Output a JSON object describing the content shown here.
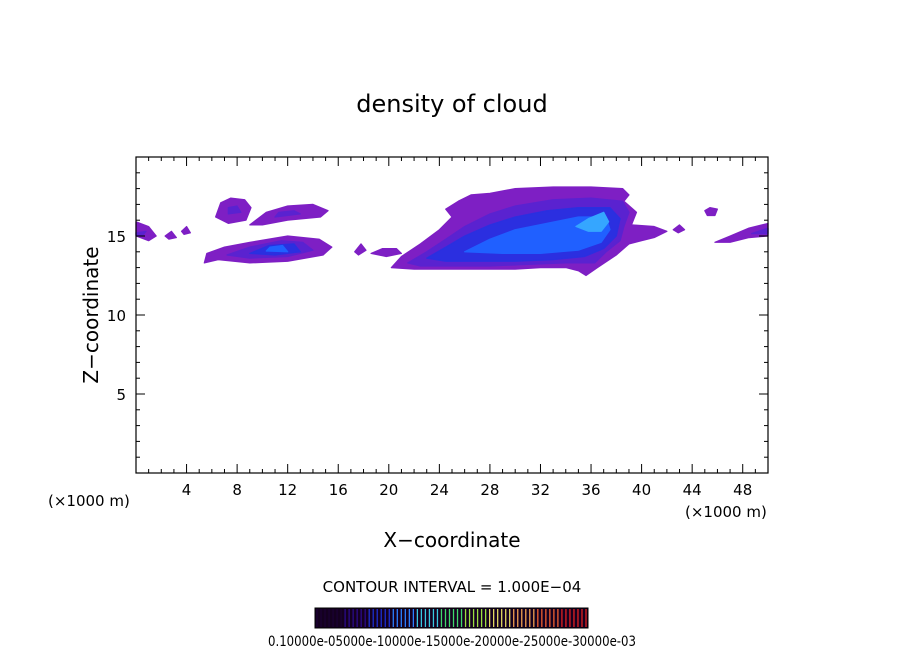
{
  "chart_data": {
    "type": "heatmap",
    "title": "density of cloud",
    "xlabel": "X−coordinate",
    "ylabel": "Z−coordinate",
    "x_unit_left": "(×1000 m)",
    "x_unit_right": "(×1000 m)",
    "xlim": [
      0,
      50
    ],
    "ylim": [
      0,
      20
    ],
    "x_ticks": [
      4,
      8,
      12,
      16,
      20,
      24,
      28,
      32,
      36,
      40,
      44,
      48
    ],
    "y_ticks": [
      5,
      10,
      15
    ],
    "x_tick_labels": [
      "4",
      "8",
      "12",
      "16",
      "20",
      "24",
      "28",
      "32",
      "36",
      "40",
      "44",
      "48"
    ],
    "y_tick_labels": [
      "5",
      "10",
      "15"
    ],
    "contour_interval_text": "CONTOUR INTERVAL = 1.000E−04",
    "colorbar_labels_text": "0.10000e-05000e-10000e-15000e-20000e-25000e-30000e-03",
    "colorbar_colors": [
      "#1a0033",
      "#2a0a8a",
      "#1c2fd0",
      "#2a7fff",
      "#38c8e0",
      "#3fd86a",
      "#9adf40",
      "#e0d860",
      "#f0a050",
      "#f06030",
      "#e02020"
    ],
    "colors": {
      "outer": "#7e1fc4",
      "mid": "#5a22d0",
      "inner": "#2b2fe0",
      "core": "#2060ff",
      "peak": "#35a6ff"
    },
    "cloud_regions": [
      {
        "name": "left-low-band",
        "level": 1,
        "pts": [
          [
            5.4,
            13.3
          ],
          [
            6.5,
            13.5
          ],
          [
            9,
            13.3
          ],
          [
            12,
            13.4
          ],
          [
            14.8,
            13.8
          ],
          [
            15.5,
            14.3
          ],
          [
            14.5,
            14.8
          ],
          [
            12,
            15.0
          ],
          [
            9,
            14.6
          ],
          [
            7,
            14.3
          ],
          [
            5.6,
            13.9
          ]
        ]
      },
      {
        "name": "left-low-band",
        "level": 2,
        "pts": [
          [
            7.2,
            13.8
          ],
          [
            9,
            13.6
          ],
          [
            12,
            13.7
          ],
          [
            14,
            14.1
          ],
          [
            13.2,
            14.6
          ],
          [
            11.5,
            14.7
          ],
          [
            9,
            14.3
          ]
        ]
      },
      {
        "name": "left-low-band",
        "level": 3,
        "pts": [
          [
            9,
            13.9
          ],
          [
            11,
            13.8
          ],
          [
            13,
            14.0
          ],
          [
            12.5,
            14.5
          ],
          [
            10.5,
            14.4
          ]
        ]
      },
      {
        "name": "left-low-band",
        "level": 4,
        "pts": [
          [
            10.3,
            14.05
          ],
          [
            12,
            14.0
          ],
          [
            11.6,
            14.4
          ],
          [
            10.6,
            14.3
          ]
        ]
      },
      {
        "name": "upper-left-puff",
        "level": 1,
        "pts": [
          [
            6.3,
            16.2
          ],
          [
            6.7,
            17.1
          ],
          [
            7.5,
            17.4
          ],
          [
            8.6,
            17.3
          ],
          [
            9.1,
            16.8
          ],
          [
            8.7,
            16.0
          ],
          [
            7.3,
            15.8
          ]
        ]
      },
      {
        "name": "upper-left-puff",
        "level": 2,
        "pts": [
          [
            7.3,
            16.4
          ],
          [
            8.3,
            16.5
          ],
          [
            8.0,
            16.9
          ],
          [
            7.3,
            16.8
          ]
        ]
      },
      {
        "name": "upper-mid-band",
        "level": 1,
        "pts": [
          [
            9.0,
            15.7
          ],
          [
            10.3,
            16.5
          ],
          [
            12,
            16.9
          ],
          [
            14,
            17.0
          ],
          [
            15.2,
            16.6
          ],
          [
            14.6,
            16.2
          ],
          [
            12,
            16.0
          ],
          [
            10,
            15.7
          ]
        ]
      },
      {
        "name": "upper-mid-band",
        "level": 2,
        "pts": [
          [
            11,
            16.2
          ],
          [
            13,
            16.4
          ],
          [
            12.5,
            16.6
          ],
          [
            11.3,
            16.5
          ]
        ]
      },
      {
        "name": "left-edge",
        "level": 1,
        "pts": [
          [
            0,
            15.9
          ],
          [
            1.0,
            15.6
          ],
          [
            1.6,
            15.0
          ],
          [
            1.0,
            14.7
          ],
          [
            0,
            15.0
          ]
        ]
      },
      {
        "name": "left-edge",
        "level": 2,
        "pts": [
          [
            0,
            15.2
          ],
          [
            0.8,
            15.3
          ],
          [
            0.5,
            15.0
          ],
          [
            0,
            15.05
          ]
        ]
      },
      {
        "name": "speck",
        "level": 1,
        "pts": [
          [
            2.3,
            15.0
          ],
          [
            2.8,
            15.3
          ],
          [
            3.2,
            14.9
          ],
          [
            2.6,
            14.8
          ]
        ]
      },
      {
        "name": "speck",
        "level": 1,
        "pts": [
          [
            3.6,
            15.3
          ],
          [
            4.0,
            15.6
          ],
          [
            4.3,
            15.2
          ],
          [
            3.8,
            15.1
          ]
        ]
      },
      {
        "name": "speck",
        "level": 1,
        "pts": [
          [
            17.3,
            14.0
          ],
          [
            17.8,
            14.5
          ],
          [
            18.2,
            14.1
          ],
          [
            17.6,
            13.8
          ]
        ]
      },
      {
        "name": "speck",
        "level": 1,
        "pts": [
          [
            18.6,
            13.9
          ],
          [
            19.5,
            14.2
          ],
          [
            20.6,
            14.2
          ],
          [
            21.0,
            13.9
          ],
          [
            19.8,
            13.7
          ]
        ]
      },
      {
        "name": "speck",
        "level": 1,
        "pts": [
          [
            45.0,
            16.6
          ],
          [
            45.4,
            16.8
          ],
          [
            46.0,
            16.7
          ],
          [
            45.8,
            16.3
          ],
          [
            45.2,
            16.3
          ]
        ]
      },
      {
        "name": "speck",
        "level": 1,
        "pts": [
          [
            42.5,
            15.4
          ],
          [
            43.0,
            15.7
          ],
          [
            43.4,
            15.4
          ],
          [
            42.9,
            15.2
          ]
        ]
      },
      {
        "name": "right-edge",
        "level": 1,
        "pts": [
          [
            45.8,
            14.6
          ],
          [
            47.0,
            15.0
          ],
          [
            48.5,
            15.5
          ],
          [
            50,
            15.8
          ],
          [
            50,
            15.0
          ],
          [
            48.5,
            14.9
          ],
          [
            47.0,
            14.6
          ]
        ]
      },
      {
        "name": "right-edge",
        "level": 2,
        "pts": [
          [
            48.7,
            15.15
          ],
          [
            50,
            15.5
          ],
          [
            50,
            15.15
          ]
        ]
      },
      {
        "name": "main-cloud",
        "level": 1,
        "pts": [
          [
            20.2,
            13.0
          ],
          [
            21,
            13.7
          ],
          [
            22.5,
            14.5
          ],
          [
            24,
            15.4
          ],
          [
            25,
            16.2
          ],
          [
            24.5,
            16.7
          ],
          [
            25.5,
            17.2
          ],
          [
            26.5,
            17.6
          ],
          [
            28,
            17.7
          ],
          [
            30,
            18.0
          ],
          [
            33,
            18.1
          ],
          [
            36,
            18.1
          ],
          [
            38.5,
            18.0
          ],
          [
            39,
            17.6
          ],
          [
            38.6,
            17.2
          ],
          [
            39.6,
            16.5
          ],
          [
            39.2,
            15.7
          ],
          [
            41,
            15.6
          ],
          [
            42,
            15.3
          ],
          [
            41,
            14.9
          ],
          [
            40,
            14.7
          ],
          [
            39,
            14.5
          ],
          [
            38,
            13.8
          ],
          [
            36.5,
            13.0
          ],
          [
            35.6,
            12.5
          ],
          [
            35,
            12.8
          ],
          [
            34,
            13.0
          ],
          [
            32,
            13.0
          ],
          [
            30,
            12.9
          ],
          [
            27,
            12.9
          ],
          [
            24,
            12.9
          ],
          [
            22,
            12.9
          ]
        ]
      },
      {
        "name": "main-cloud",
        "level": 2,
        "pts": [
          [
            21.5,
            13.3
          ],
          [
            23,
            14.0
          ],
          [
            24.5,
            14.8
          ],
          [
            26,
            15.6
          ],
          [
            28,
            16.4
          ],
          [
            30,
            16.9
          ],
          [
            33,
            17.3
          ],
          [
            36,
            17.4
          ],
          [
            38.5,
            17.2
          ],
          [
            39,
            16.5
          ],
          [
            38.6,
            15.6
          ],
          [
            38.3,
            14.7
          ],
          [
            37.2,
            14.0
          ],
          [
            36.3,
            13.3
          ],
          [
            34,
            13.3
          ],
          [
            31,
            13.2
          ],
          [
            28,
            13.1
          ],
          [
            25,
            13.1
          ],
          [
            22.5,
            13.1
          ]
        ]
      },
      {
        "name": "main-cloud",
        "level": 3,
        "pts": [
          [
            23,
            13.6
          ],
          [
            24.5,
            14.3
          ],
          [
            26,
            15.0
          ],
          [
            28,
            15.7
          ],
          [
            30,
            16.2
          ],
          [
            32.5,
            16.6
          ],
          [
            35,
            16.8
          ],
          [
            37.5,
            16.8
          ],
          [
            38.3,
            16.1
          ],
          [
            38,
            15.0
          ],
          [
            37,
            14.2
          ],
          [
            35.5,
            13.7
          ],
          [
            33,
            13.5
          ],
          [
            30,
            13.4
          ],
          [
            27,
            13.4
          ],
          [
            24.5,
            13.4
          ]
        ]
      },
      {
        "name": "main-cloud",
        "level": 4,
        "pts": [
          [
            26,
            14.0
          ],
          [
            28,
            14.8
          ],
          [
            30,
            15.4
          ],
          [
            32.5,
            15.8
          ],
          [
            35,
            16.2
          ],
          [
            37.2,
            16.2
          ],
          [
            37.5,
            15.4
          ],
          [
            36.8,
            14.6
          ],
          [
            35,
            14.1
          ],
          [
            32,
            13.9
          ],
          [
            29,
            13.9
          ]
        ]
      },
      {
        "name": "main-cloud",
        "level": 5,
        "pts": [
          [
            34.8,
            15.6
          ],
          [
            35.8,
            16.1
          ],
          [
            37,
            16.5
          ],
          [
            37.4,
            15.9
          ],
          [
            36.8,
            15.3
          ],
          [
            35.8,
            15.3
          ]
        ]
      }
    ]
  }
}
